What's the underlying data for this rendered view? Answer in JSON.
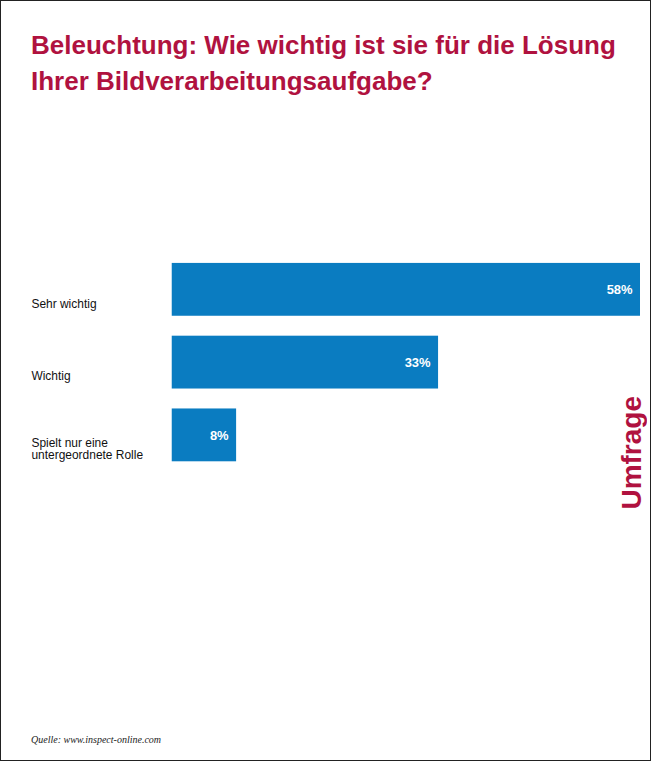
{
  "chart_data": {
    "type": "bar",
    "orientation": "horizontal",
    "title": "Beleuchtung: Wie wichtig ist sie für die Lösung Ihrer Bildverarbeitungsaufgabe?",
    "categories": [
      "Sehr wichtig",
      "Wichtig",
      "Spielt nur eine untergeordnete Rolle"
    ],
    "values": [
      58,
      33,
      8
    ],
    "value_labels": [
      "58%",
      "33%",
      "8%"
    ],
    "data_labels": true,
    "tick_labels": "y",
    "color": "#0a7cc1",
    "annotations": [
      "Umfrage"
    ],
    "source": "Quelle: www.inspect-online.com"
  }
}
